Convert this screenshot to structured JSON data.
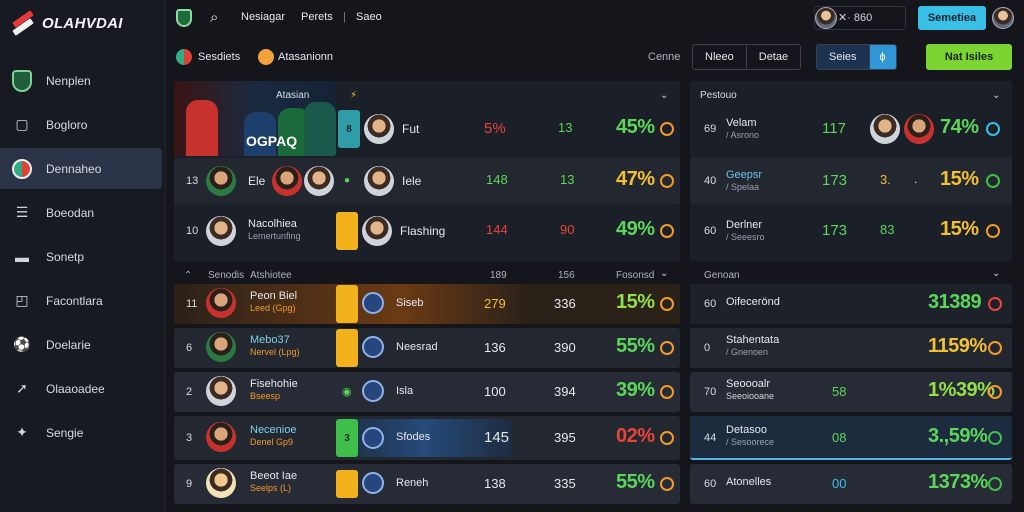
{
  "app": {
    "title": "OLAHVDAI"
  },
  "sidebar": {
    "items": [
      {
        "label": "Nenplen",
        "icon": "shield-icon"
      },
      {
        "label": "Bogloro",
        "icon": "tag-icon"
      },
      {
        "label": "Dennaheo",
        "icon": "team-badge-icon"
      },
      {
        "label": "Boeodan",
        "icon": "list-icon"
      },
      {
        "label": "Sonetp",
        "icon": "bookmark-icon"
      },
      {
        "label": "Facontlara",
        "icon": "window-icon"
      },
      {
        "label": "Doelarie",
        "icon": "ball-icon"
      },
      {
        "label": "Olaaoadee",
        "icon": "arrow-icon"
      },
      {
        "label": "Sengie",
        "icon": "star-icon"
      }
    ]
  },
  "topbar": {
    "links": [
      "Nesiagar",
      "Perets",
      "Saeo"
    ],
    "separator": "|",
    "status": "✕·  860",
    "status_icon": "x-icon",
    "pill": "Semetiea"
  },
  "filters": {
    "items": [
      "Sesdiets",
      "Atasanionn"
    ],
    "cats": "Cenne",
    "seg1": [
      "Nleeo",
      "Detae"
    ],
    "seg2": [
      "Seies",
      "ɸ"
    ],
    "button": "Nat Isiles"
  },
  "hero": {
    "title": "OGPAQ"
  },
  "top_header": {
    "left": "Atasian",
    "right": "Pestouo"
  },
  "top_rows_left": [
    {
      "rank": "",
      "name": "Fut",
      "tag": "",
      "v1": "5%",
      "v2": "13",
      "pct": "45%"
    },
    {
      "rank": "13",
      "name1": "Ele",
      "name2": "Iele",
      "v1": "148",
      "v2": "13",
      "pct": "47%"
    },
    {
      "rank": "10",
      "name": "Nacolhiea",
      "sub": "Lemertunfing",
      "name2": "Flashing",
      "v1": "144",
      "v2": "90",
      "pct": "49%"
    }
  ],
  "top_rows_right": [
    {
      "rank": "69",
      "name": "Velam",
      "sub": "/ Asrono",
      "v1": "117",
      "pct": "74%"
    },
    {
      "rank": "40",
      "name": "Geepsr",
      "sub": "/ Spelaa",
      "v1": "173",
      "v2": "3.",
      "v3": ".",
      "pct": "15%"
    },
    {
      "rank": "60",
      "name": "Derlner",
      "sub": "/ Seeesro",
      "v1": "173",
      "v2": "83",
      "pct": "15%"
    }
  ],
  "list_header": {
    "col1": "Senodis",
    "col2": "Atshiotee",
    "col3": "189",
    "col4": "156",
    "col5": "Fosonsd",
    "right": "Genoan"
  },
  "list_rows_left": [
    {
      "rank": "11",
      "name": "Peon Biel",
      "sub": "Leed (Gpg)",
      "team": "Siseb",
      "v1": "279",
      "v2": "336",
      "pct": "15%"
    },
    {
      "rank": "6",
      "name": "Mebo37",
      "sub": "Nervel (Lpg)",
      "team": "Neesrad",
      "v1": "136",
      "v2": "390",
      "pct": "55%"
    },
    {
      "rank": "2",
      "name": "Fisehohie",
      "sub": "Bseesp",
      "team": "Isla",
      "v1": "100",
      "v2": "394",
      "pct": "39%"
    },
    {
      "rank": "3",
      "name": "Necenioe",
      "sub": "Denel Gp9",
      "team": "Sfodes",
      "v1": "145",
      "v2": "395",
      "pct": "02%"
    },
    {
      "rank": "9",
      "name": "Beeot Iae",
      "sub": "Seelps (L)",
      "team": "Reneh",
      "v1": "138",
      "v2": "335",
      "pct": "55%"
    }
  ],
  "list_rows_right": [
    {
      "rank": "60",
      "name": "Oifecerönd",
      "sub": "",
      "v1": "",
      "pct": "31389"
    },
    {
      "rank": "0",
      "name": "Stahentata",
      "sub": "/ Gnenoen",
      "v1": "",
      "pct": "1159%"
    },
    {
      "rank": "70",
      "name": "Seoooalr",
      "sub": "Seeoiooane",
      "v1": "58",
      "pct": "1%39%"
    },
    {
      "rank": "44",
      "name": "Detasoo",
      "sub": "/ Sesoorece",
      "v1": "08",
      "pct": "3.,59%"
    },
    {
      "rank": "60",
      "name": "Atonelles",
      "sub": "",
      "v1": "00",
      "pct": "1373%"
    }
  ]
}
